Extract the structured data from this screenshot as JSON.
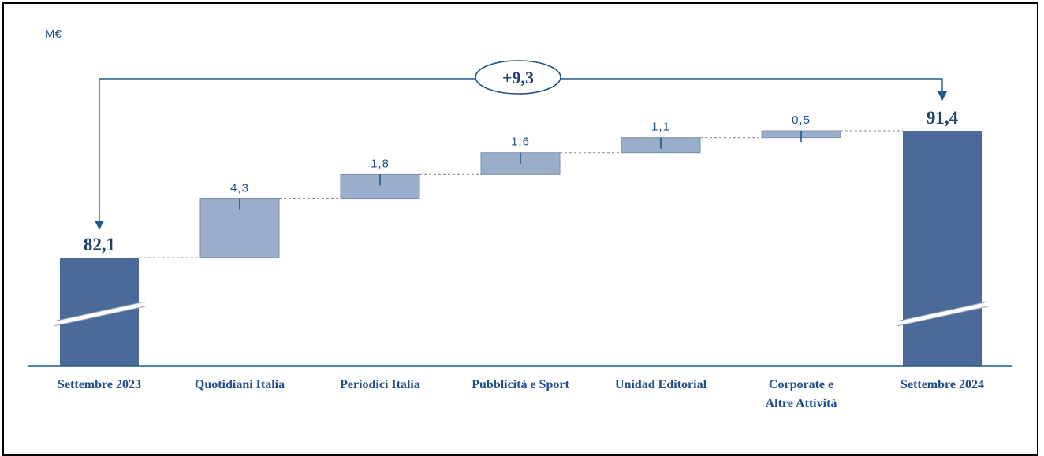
{
  "chart_data": {
    "type": "waterfall",
    "unit": "M€",
    "categories": [
      "Settembre 2023",
      "Quotidiani Italia",
      "Periodici Italia",
      "Pubblicità e Sport",
      "Unidad Editorial",
      "Corporate e Altre Attività",
      "Settembre 2024"
    ],
    "category_lines": [
      [
        "Settembre 2023"
      ],
      [
        "Quotidiani Italia"
      ],
      [
        "Periodici Italia"
      ],
      [
        "Pubblicità e Sport"
      ],
      [
        "Unidad Editorial"
      ],
      [
        "Corporate e",
        "Altre Attività"
      ],
      [
        "Settembre 2024"
      ]
    ],
    "start": {
      "label": "82,1",
      "value": 82.1
    },
    "end": {
      "label": "91,4",
      "value": 91.4
    },
    "steps": [
      {
        "label": "4,3",
        "value": 4.3
      },
      {
        "label": "1,8",
        "value": 1.8
      },
      {
        "label": "1,6",
        "value": 1.6
      },
      {
        "label": "1,1",
        "value": 1.1
      },
      {
        "label": "0,5",
        "value": 0.5
      }
    ],
    "total_change": {
      "label": "+9,3",
      "value": 9.3
    },
    "axis_break": true,
    "colors": {
      "total": "#4a6a99",
      "step": "#9aaecb",
      "accent": "#1f5a8c",
      "text": "#1f4e8c"
    }
  }
}
